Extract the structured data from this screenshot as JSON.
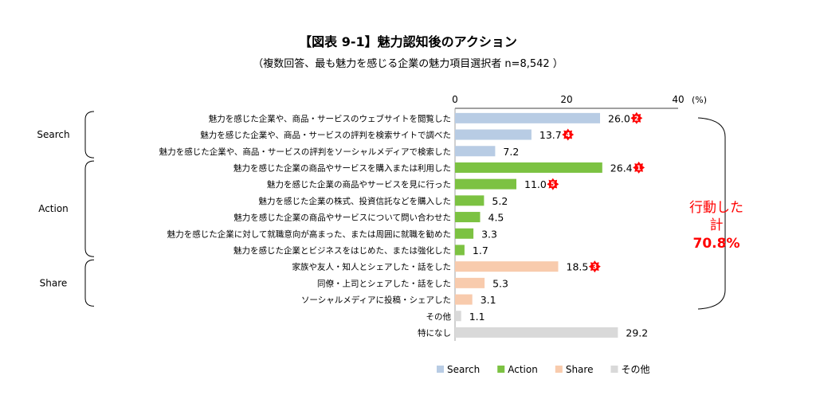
{
  "chart_data": {
    "type": "bar",
    "orientation": "horizontal",
    "title": "【図表 9-1】魅力認知後のアクション",
    "subtitle": "（複数回答、最も魅力を感じる企業の魅力項目選択者 n=8,542 ）",
    "unit": "(%)",
    "xlim": [
      0,
      40
    ],
    "ticks": [
      "0",
      "20",
      "40"
    ],
    "grid": false,
    "legend_position": "bottom",
    "colors": {
      "Search": "#b8cce4",
      "Action": "#7cc242",
      "Share": "#f8cbad",
      "その他": "#d9d9d9",
      "rank": "#ff0000",
      "summary": "#ff0000"
    },
    "categories": [
      "魅力を感じた企業や、商品・サービスのウェブサイトを閲覧した",
      "魅力を感じた企業や、商品・サービスの評判を検索サイトで調べた",
      "魅力を感じた企業や、商品・サービスの評判をソーシャルメディアで検索した",
      "魅力を感じた企業の商品やサービスを購入または利用した",
      "魅力を感じた企業の商品やサービスを見に行った",
      "魅力を感じた企業の株式、投資信託などを購入した",
      "魅力を感じた企業の商品やサービスについて問い合わせた",
      "魅力を感じた企業に対して就職意向が高まった、または周囲に就職を勧めた",
      "魅力を感じた企業とビジネスをはじめた、または強化した",
      "家族や友人・知人とシェアした・話をした",
      "同僚・上司とシェアした・話をした",
      "ソーシャルメディアに投稿・シェアした",
      "その他",
      "特になし"
    ],
    "values": [
      26.0,
      13.7,
      7.2,
      26.4,
      11.0,
      5.2,
      4.5,
      3.3,
      1.7,
      18.5,
      5.3,
      3.1,
      1.1,
      29.2
    ],
    "value_labels": [
      "26.0",
      "13.7",
      "7.2",
      "26.4",
      "11.0",
      "5.2",
      "4.5",
      "3.3",
      "1.7",
      "18.5",
      "5.3",
      "3.1",
      "1.1",
      "29.2"
    ],
    "group": [
      "Search",
      "Search",
      "Search",
      "Action",
      "Action",
      "Action",
      "Action",
      "Action",
      "Action",
      "Share",
      "Share",
      "Share",
      "その他",
      "その他"
    ],
    "rank": [
      "2",
      "4",
      "",
      "1",
      "5",
      "",
      "",
      "",
      "",
      "3",
      "",
      "",
      "",
      ""
    ],
    "groups": [
      {
        "name": "Search",
        "first": 0,
        "last": 2
      },
      {
        "name": "Action",
        "first": 3,
        "last": 8
      },
      {
        "name": "Share",
        "first": 9,
        "last": 11
      }
    ],
    "legend": [
      "Search",
      "Action",
      "Share",
      "その他"
    ],
    "annotation": {
      "line1": "行動した",
      "line2": "計",
      "line3": "70.8%"
    }
  }
}
